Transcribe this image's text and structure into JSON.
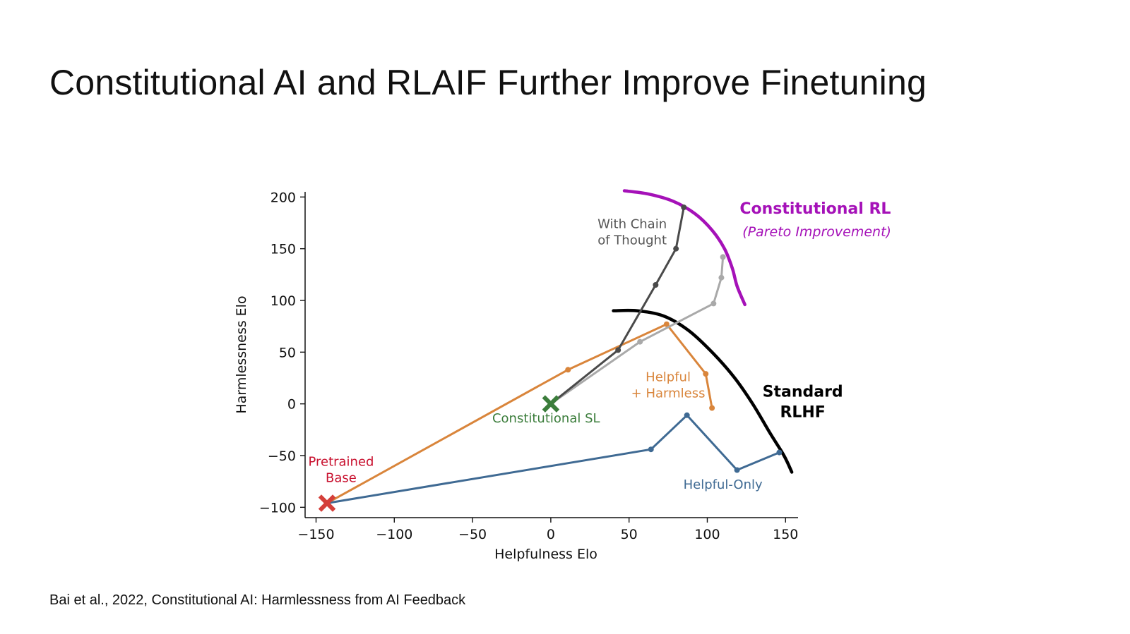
{
  "slide": {
    "title": "Constitutional AI and RLAIF Further Improve Finetuning",
    "citation": "Bai et al., 2022, Constitutional AI: Harmlessness from AI Feedback"
  },
  "chart_data": {
    "type": "line",
    "xlabel": "Helpfulness Elo",
    "ylabel": "Harmlessness Elo",
    "xlim": [
      -157,
      158
    ],
    "ylim": [
      -110,
      205
    ],
    "xticks": [
      -150,
      -100,
      -50,
      0,
      50,
      100,
      150
    ],
    "xtick_labels": [
      "−150",
      "−100",
      "−50",
      "0",
      "50",
      "100",
      "150"
    ],
    "yticks": [
      -100,
      -50,
      0,
      50,
      100,
      150,
      200
    ],
    "ytick_labels": [
      "−100",
      "−50",
      "0",
      "50",
      "100",
      "150",
      "200"
    ],
    "grid": false,
    "series": [
      {
        "key": "helpful_only",
        "color": "#3f6a93",
        "points": [
          [
            -143,
            -96
          ],
          [
            64,
            -44
          ],
          [
            87,
            -11
          ],
          [
            119,
            -64
          ],
          [
            146,
            -47
          ]
        ]
      },
      {
        "key": "helpful_harmless",
        "color": "#d9853b",
        "points": [
          [
            -143,
            -96
          ],
          [
            11,
            33
          ],
          [
            74,
            77
          ],
          [
            99,
            29
          ],
          [
            103,
            -4
          ]
        ]
      },
      {
        "key": "constitutional_rl",
        "color": "#a9a9a9",
        "points": [
          [
            0,
            0
          ],
          [
            57,
            60
          ],
          [
            104,
            97
          ],
          [
            109,
            122
          ],
          [
            110,
            142
          ]
        ]
      },
      {
        "key": "chain_of_thought",
        "color": "#4a4a4a",
        "points": [
          [
            0,
            0
          ],
          [
            43,
            52
          ],
          [
            67,
            115
          ],
          [
            80,
            150
          ],
          [
            85,
            190
          ]
        ]
      }
    ],
    "markers": [
      {
        "key": "pretrained_base",
        "shape": "x",
        "color": "#d43f3a",
        "x": -143,
        "y": -96
      },
      {
        "key": "constitutional_sl",
        "shape": "x",
        "color": "#3b7d3b",
        "x": 0,
        "y": 0
      }
    ],
    "frontiers": [
      {
        "key": "standard_rlhf",
        "color": "#000000",
        "points": [
          [
            40,
            90
          ],
          [
            55,
            90
          ],
          [
            72,
            85
          ],
          [
            88,
            71
          ],
          [
            103,
            50
          ],
          [
            117,
            26
          ],
          [
            129,
            0
          ],
          [
            140,
            -28
          ],
          [
            149,
            -50
          ],
          [
            154,
            -66
          ]
        ]
      },
      {
        "key": "constitutional_rl_frontier",
        "color": "#a511b8",
        "points": [
          [
            47,
            206
          ],
          [
            62,
            203
          ],
          [
            78,
            196
          ],
          [
            92,
            184
          ],
          [
            103,
            168
          ],
          [
            111,
            150
          ],
          [
            116,
            131
          ],
          [
            119,
            114
          ],
          [
            124,
            96
          ]
        ]
      }
    ],
    "annotations": [
      {
        "key": "pretrained_base",
        "lines": [
          "Pretrained",
          "Base"
        ],
        "color": "#c8102e",
        "x": -134,
        "y": -60,
        "style": "normal"
      },
      {
        "key": "constitutional_sl",
        "lines": [
          "Constitutional SL"
        ],
        "color": "#3b7d3b",
        "x": -3,
        "y": -18,
        "style": "normal"
      },
      {
        "key": "helpful_harmless",
        "lines": [
          "Helpful",
          "+ Harmless"
        ],
        "color": "#d9853b",
        "x": 75,
        "y": 22,
        "style": "normal"
      },
      {
        "key": "helpful_only",
        "lines": [
          "Helpful-Only"
        ],
        "color": "#3f6a93",
        "x": 110,
        "y": -82,
        "style": "normal"
      },
      {
        "key": "chain_of_thought",
        "lines": [
          "With Chain",
          "of Thought"
        ],
        "color": "#555555",
        "x": 52,
        "y": 170,
        "style": "normal"
      },
      {
        "key": "standard_rlhf",
        "lines": [
          "Standard",
          "RLHF"
        ],
        "color": "#000000",
        "x": 161,
        "y": 7,
        "style": "bold"
      },
      {
        "key": "constitutional_rl",
        "lines": [
          "Constitutional RL"
        ],
        "color": "#a511b8",
        "x": 169,
        "y": 184,
        "style": "bold"
      },
      {
        "key": "pareto",
        "lines": [
          "(Pareto Improvement)"
        ],
        "color": "#a511b8",
        "x": 170,
        "y": 162,
        "style": "italic"
      }
    ]
  }
}
